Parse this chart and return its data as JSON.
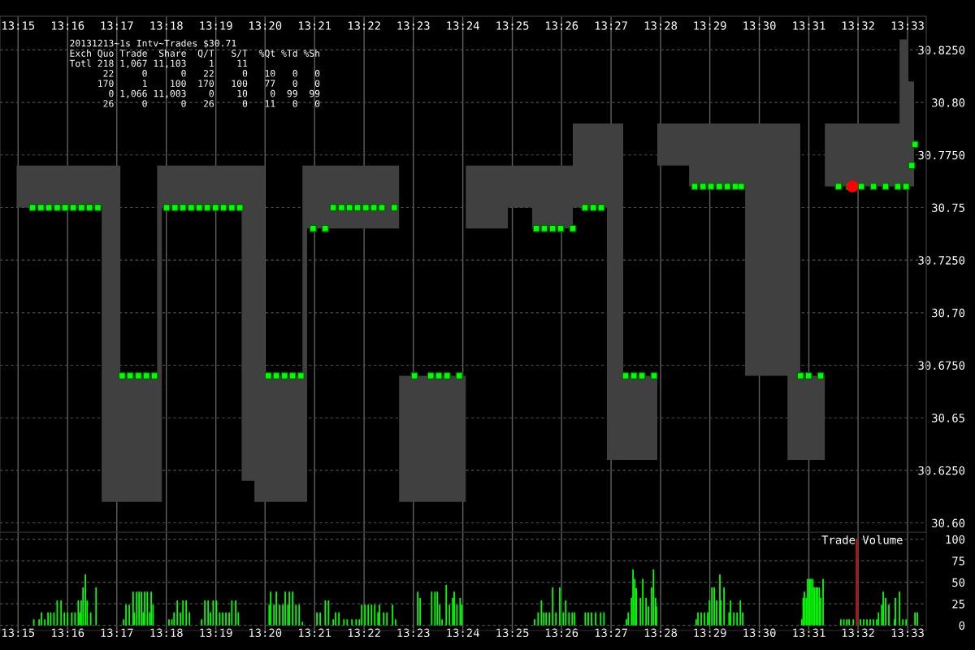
{
  "chart_data": [
    {
      "type": "scatter",
      "xlim": [
        13.2439,
        13.5563
      ],
      "x2lim": [
        13.2439,
        13.5563
      ],
      "ylim": [
        30.5955,
        30.841
      ],
      "grid": true,
      "x2ticks": [
        {
          "value": 13.25,
          "label": "13:15"
        },
        {
          "value": 13.2667,
          "label": "13:16"
        },
        {
          "value": 13.2833,
          "label": "13:17"
        },
        {
          "value": 13.3,
          "label": "13:18"
        },
        {
          "value": 13.3167,
          "label": "13:19"
        },
        {
          "value": 13.3333,
          "label": "13:20"
        },
        {
          "value": 13.35,
          "label": "13:21"
        },
        {
          "value": 13.3667,
          "label": "13:22"
        },
        {
          "value": 13.3833,
          "label": "13:23"
        },
        {
          "value": 13.4,
          "label": "13:24"
        },
        {
          "value": 13.4167,
          "label": "13:25"
        },
        {
          "value": 13.4333,
          "label": "13:26"
        },
        {
          "value": 13.45,
          "label": "13:27"
        },
        {
          "value": 13.4667,
          "label": "13:28"
        },
        {
          "value": 13.4833,
          "label": "13:29"
        },
        {
          "value": 13.5,
          "label": "13:30"
        },
        {
          "value": 13.5167,
          "label": "13:31"
        },
        {
          "value": 13.5333,
          "label": "13:32"
        },
        {
          "value": 13.55,
          "label": "13:33"
        }
      ],
      "yticks": [
        {
          "value": 30.6,
          "label": "30.60"
        },
        {
          "value": 30.625,
          "label": "30.6250"
        },
        {
          "value": 30.65,
          "label": "30.65"
        },
        {
          "value": 30.675,
          "label": "30.6750"
        },
        {
          "value": 30.7,
          "label": "30.70"
        },
        {
          "value": 30.725,
          "label": "30.7250"
        },
        {
          "value": 30.75,
          "label": "30.75"
        },
        {
          "value": 30.775,
          "label": "30.7750"
        },
        {
          "value": 30.8,
          "label": "30.80"
        },
        {
          "value": 30.825,
          "label": "30.8250"
        }
      ],
      "annotations": [
        "20131213~1s Intv~Trades $30.71",
        "Exch Quo Trade  Share  Q/T   S/T  %Qt %Td %Sh",
        "Totl 218 1,067 11,103    1    11",
        "      22     0      0   22     0   10   0   0",
        "     170     1    100  170   100   77   0   0",
        "       0 1,066 11,003    0    10    0  99  99",
        "      26     0      0   26     0   11   0   0"
      ],
      "series": [
        {
          "type": "step",
          "color": "#404040",
          "x": [
            13.2495,
            13.2782,
            13.2845,
            13.2969,
            13.2985,
            13.3254,
            13.3297,
            13.3333,
            13.3459,
            13.3475,
            13.3785,
            13.401,
            13.4152,
            13.4234,
            13.4371,
            13.4486,
            13.4541,
            13.4656,
            13.4763,
            13.4952,
            13.5095,
            13.5138,
            13.5221,
            13.5473,
            13.5503,
            13.5522
          ],
          "values": [
            null,
            null,
            null,
            null,
            null,
            null,
            null,
            null,
            null,
            null,
            null,
            null,
            null,
            null,
            null,
            null,
            null,
            null,
            null,
            null,
            null,
            null,
            null,
            null,
            null,
            null
          ],
          "upper": [
            30.77,
            30.77,
            30.67,
            30.77,
            30.77,
            30.77,
            30.77,
            30.67,
            30.77,
            30.77,
            30.67,
            30.77,
            30.77,
            30.77,
            30.79,
            30.79,
            30.67,
            30.79,
            30.79,
            30.79,
            30.79,
            30.67,
            30.79,
            30.83,
            30.81,
            30.81
          ],
          "lower": [
            30.75,
            30.61,
            30.61,
            30.61,
            30.75,
            30.62,
            30.61,
            30.61,
            30.61,
            30.74,
            30.61,
            30.74,
            30.75,
            30.74,
            30.75,
            30.63,
            30.63,
            30.77,
            30.76,
            30.67,
            30.63,
            30.63,
            30.76,
            30.76,
            30.76,
            30.76
          ]
        },
        {
          "color": "#00ff00",
          "marker": "square",
          "x": [
            13.2549,
            13.2577,
            13.2604,
            13.2632,
            13.2659,
            13.2686,
            13.2714,
            13.2741,
            13.2769,
            13.2851,
            13.2878,
            13.2906,
            13.2933,
            13.296,
            13.3001,
            13.3029,
            13.3056,
            13.3084,
            13.3111,
            13.3138,
            13.3166,
            13.3193,
            13.3221,
            13.3248,
            13.3344,
            13.3371,
            13.3399,
            13.3426,
            13.3454,
            13.3495,
            13.3536,
            13.3563,
            13.3591,
            13.3618,
            13.3645,
            13.3673,
            13.37,
            13.3727,
            13.3769,
            13.3837,
            13.3892,
            13.3919,
            13.3947,
            13.3988,
            13.4248,
            13.4275,
            13.4303,
            13.433,
            13.4371,
            13.4412,
            13.444,
            13.4467,
            13.4549,
            13.4577,
            13.4604,
            13.4645,
            13.4782,
            13.481,
            13.4837,
            13.4865,
            13.4892,
            13.4919,
            13.4939,
            13.5139,
            13.5166,
            13.5207,
            13.5267,
            13.5303,
            13.5344,
            13.5385,
            13.5426,
            13.5467,
            13.5495,
            13.5514,
            13.5525
          ],
          "values": [
            30.75,
            30.75,
            30.75,
            30.75,
            30.75,
            30.75,
            30.75,
            30.75,
            30.75,
            30.67,
            30.67,
            30.67,
            30.67,
            30.67,
            30.75,
            30.75,
            30.75,
            30.75,
            30.75,
            30.75,
            30.75,
            30.75,
            30.75,
            30.75,
            30.67,
            30.67,
            30.67,
            30.67,
            30.67,
            30.74,
            30.74,
            30.75,
            30.75,
            30.75,
            30.75,
            30.75,
            30.75,
            30.75,
            30.75,
            30.67,
            30.67,
            30.67,
            30.67,
            30.67,
            30.74,
            30.74,
            30.74,
            30.74,
            30.74,
            30.75,
            30.75,
            30.75,
            30.67,
            30.67,
            30.67,
            30.67,
            30.76,
            30.76,
            30.76,
            30.76,
            30.76,
            30.76,
            30.76,
            30.67,
            30.67,
            30.67,
            30.76,
            30.76,
            30.76,
            30.76,
            30.76,
            30.76,
            30.76,
            30.77,
            30.78
          ]
        },
        {
          "color": "#ff0000",
          "marker": "circle",
          "x": [
            13.5314
          ],
          "values": [
            30.76
          ]
        }
      ]
    },
    {
      "type": "bar",
      "title": "Trade Volume",
      "xlim": [
        13.2439,
        13.5563
      ],
      "ylim": [
        -6,
        108
      ],
      "grid": true,
      "yticks": [
        0,
        25,
        50,
        75,
        100
      ],
      "xticks": [
        {
          "value": 13.25,
          "label": "13:15"
        },
        {
          "value": 13.2667,
          "label": "13:16"
        },
        {
          "value": 13.2833,
          "label": "13:17"
        },
        {
          "value": 13.3,
          "label": "13:18"
        },
        {
          "value": 13.3167,
          "label": "13:19"
        },
        {
          "value": 13.3333,
          "label": "13:20"
        },
        {
          "value": 13.35,
          "label": "13:21"
        },
        {
          "value": 13.3667,
          "label": "13:22"
        },
        {
          "value": 13.3833,
          "label": "13:23"
        },
        {
          "value": 13.4,
          "label": "13:24"
        },
        {
          "value": 13.4167,
          "label": "13:25"
        },
        {
          "value": 13.4333,
          "label": "13:26"
        },
        {
          "value": 13.45,
          "label": "13:27"
        },
        {
          "value": 13.4667,
          "label": "13:28"
        },
        {
          "value": 13.4833,
          "label": "13:29"
        },
        {
          "value": 13.5,
          "label": "13:30"
        },
        {
          "value": 13.5167,
          "label": "13:31"
        },
        {
          "value": 13.5333,
          "label": "13:32"
        },
        {
          "value": 13.55,
          "label": "13:33"
        }
      ],
      "series": [
        {
          "color": "#00ff00",
          "x": [
            13.2553,
            13.2571,
            13.2579,
            13.259,
            13.2601,
            13.261,
            13.2621,
            13.2632,
            13.2645,
            13.2656,
            13.2667,
            13.2681,
            13.2692,
            13.2703,
            13.2708,
            13.2713,
            13.2719,
            13.2727,
            13.2733,
            13.2745,
            13.2763,
            13.2856,
            13.2864,
            13.2875,
            13.2888,
            13.2892,
            13.29,
            13.2908,
            13.2916,
            13.2922,
            13.2927,
            13.2936,
            13.2944,
            13.2949,
            13.2955,
            13.3009,
            13.3019,
            13.3026,
            13.3037,
            13.3048,
            13.3056,
            13.3067,
            13.3078,
            13.3119,
            13.313,
            13.3141,
            13.3149,
            13.3158,
            13.3169,
            13.318,
            13.319,
            13.3201,
            13.3212,
            13.3221,
            13.3234,
            13.3243,
            13.3347,
            13.3352,
            13.3363,
            13.3371,
            13.3382,
            13.3393,
            13.3401,
            13.341,
            13.3415,
            13.3426,
            13.3437,
            13.3448,
            13.3459,
            13.3508,
            13.3519,
            13.3536,
            13.3547,
            13.3563,
            13.3571,
            13.3582,
            13.3599,
            13.361,
            13.3626,
            13.364,
            13.3651,
            13.3659,
            13.367,
            13.3681,
            13.3692,
            13.3703,
            13.3714,
            13.3719,
            13.3733,
            13.3744,
            13.3763,
            13.3773,
            13.3848,
            13.3856,
            13.3895,
            13.3906,
            13.3914,
            13.3922,
            13.393,
            13.3944,
            13.3955,
            13.3966,
            13.3971,
            13.398,
            13.3991,
            13.3996,
            13.4242,
            13.4254,
            13.4265,
            13.4273,
            13.4281,
            13.4292,
            13.4303,
            13.4314,
            13.4327,
            13.4339,
            13.4347,
            13.4358,
            13.4369,
            13.4377,
            13.4413,
            13.4423,
            13.4434,
            13.4448,
            13.4465,
            13.4476,
            13.4552,
            13.4558,
            13.4569,
            13.4574,
            13.458,
            13.4585,
            13.4599,
            13.4607,
            13.4618,
            13.4626,
            13.4637,
            13.4643,
            13.465,
            13.4653,
            13.4787,
            13.4793,
            13.4804,
            13.4815,
            13.4826,
            13.4832,
            13.484,
            13.4848,
            13.4856,
            13.4867,
            13.487,
            13.4881,
            13.4898,
            13.4903,
            13.4914,
            13.4925,
            13.4936,
            13.4944,
            13.5143,
            13.5148,
            13.5152,
            13.5158,
            13.5163,
            13.5169,
            13.5174,
            13.518,
            13.5185,
            13.5191,
            13.5196,
            13.5202,
            13.5207,
            13.5215,
            13.5275,
            13.5285,
            13.5295,
            13.5303,
            13.5317,
            13.5341,
            13.5352,
            13.5363,
            13.5374,
            13.5385,
            13.5396,
            13.5402,
            13.5413,
            13.5418,
            13.5426,
            13.5437,
            13.5456,
            13.5459,
            13.5473,
            13.5484,
            13.5495,
            13.5525,
            13.5533
          ],
          "values": [
            7,
            7,
            15,
            7,
            15,
            15,
            15,
            29,
            29,
            15,
            15,
            15,
            15,
            29,
            15,
            29,
            44,
            59,
            29,
            15,
            44,
            7,
            24,
            24,
            39,
            15,
            39,
            39,
            39,
            15,
            39,
            39,
            15,
            39,
            24,
            7,
            7,
            15,
            29,
            15,
            29,
            29,
            15,
            7,
            29,
            29,
            15,
            29,
            29,
            15,
            15,
            15,
            15,
            29,
            29,
            15,
            24,
            39,
            24,
            39,
            24,
            24,
            39,
            24,
            39,
            39,
            24,
            24,
            4,
            15,
            15,
            29,
            29,
            7,
            15,
            15,
            7,
            7,
            7,
            7,
            7,
            24,
            24,
            24,
            24,
            24,
            15,
            24,
            15,
            15,
            24,
            7,
            39,
            32,
            39,
            39,
            39,
            24,
            7,
            47,
            24,
            32,
            39,
            24,
            32,
            24,
            7,
            15,
            29,
            15,
            15,
            15,
            44,
            15,
            44,
            15,
            29,
            15,
            15,
            15,
            15,
            15,
            15,
            15,
            15,
            15,
            7,
            15,
            32,
            65,
            54,
            43,
            32,
            54,
            32,
            22,
            44,
            65,
            32,
            22,
            7,
            15,
            15,
            15,
            15,
            29,
            44,
            44,
            29,
            59,
            29,
            44,
            15,
            29,
            15,
            15,
            29,
            15,
            7,
            32,
            39,
            32,
            54,
            54,
            54,
            54,
            44,
            44,
            44,
            44,
            32,
            54,
            7,
            7,
            7,
            7,
            7,
            7,
            7,
            7,
            7,
            7,
            7,
            15,
            24,
            39,
            32,
            24,
            7,
            32,
            39,
            7,
            7,
            15,
            15
          ]
        },
        {
          "color": "#ff0000",
          "x": [
            13.5328
          ],
          "values": [
            100
          ]
        }
      ]
    }
  ]
}
